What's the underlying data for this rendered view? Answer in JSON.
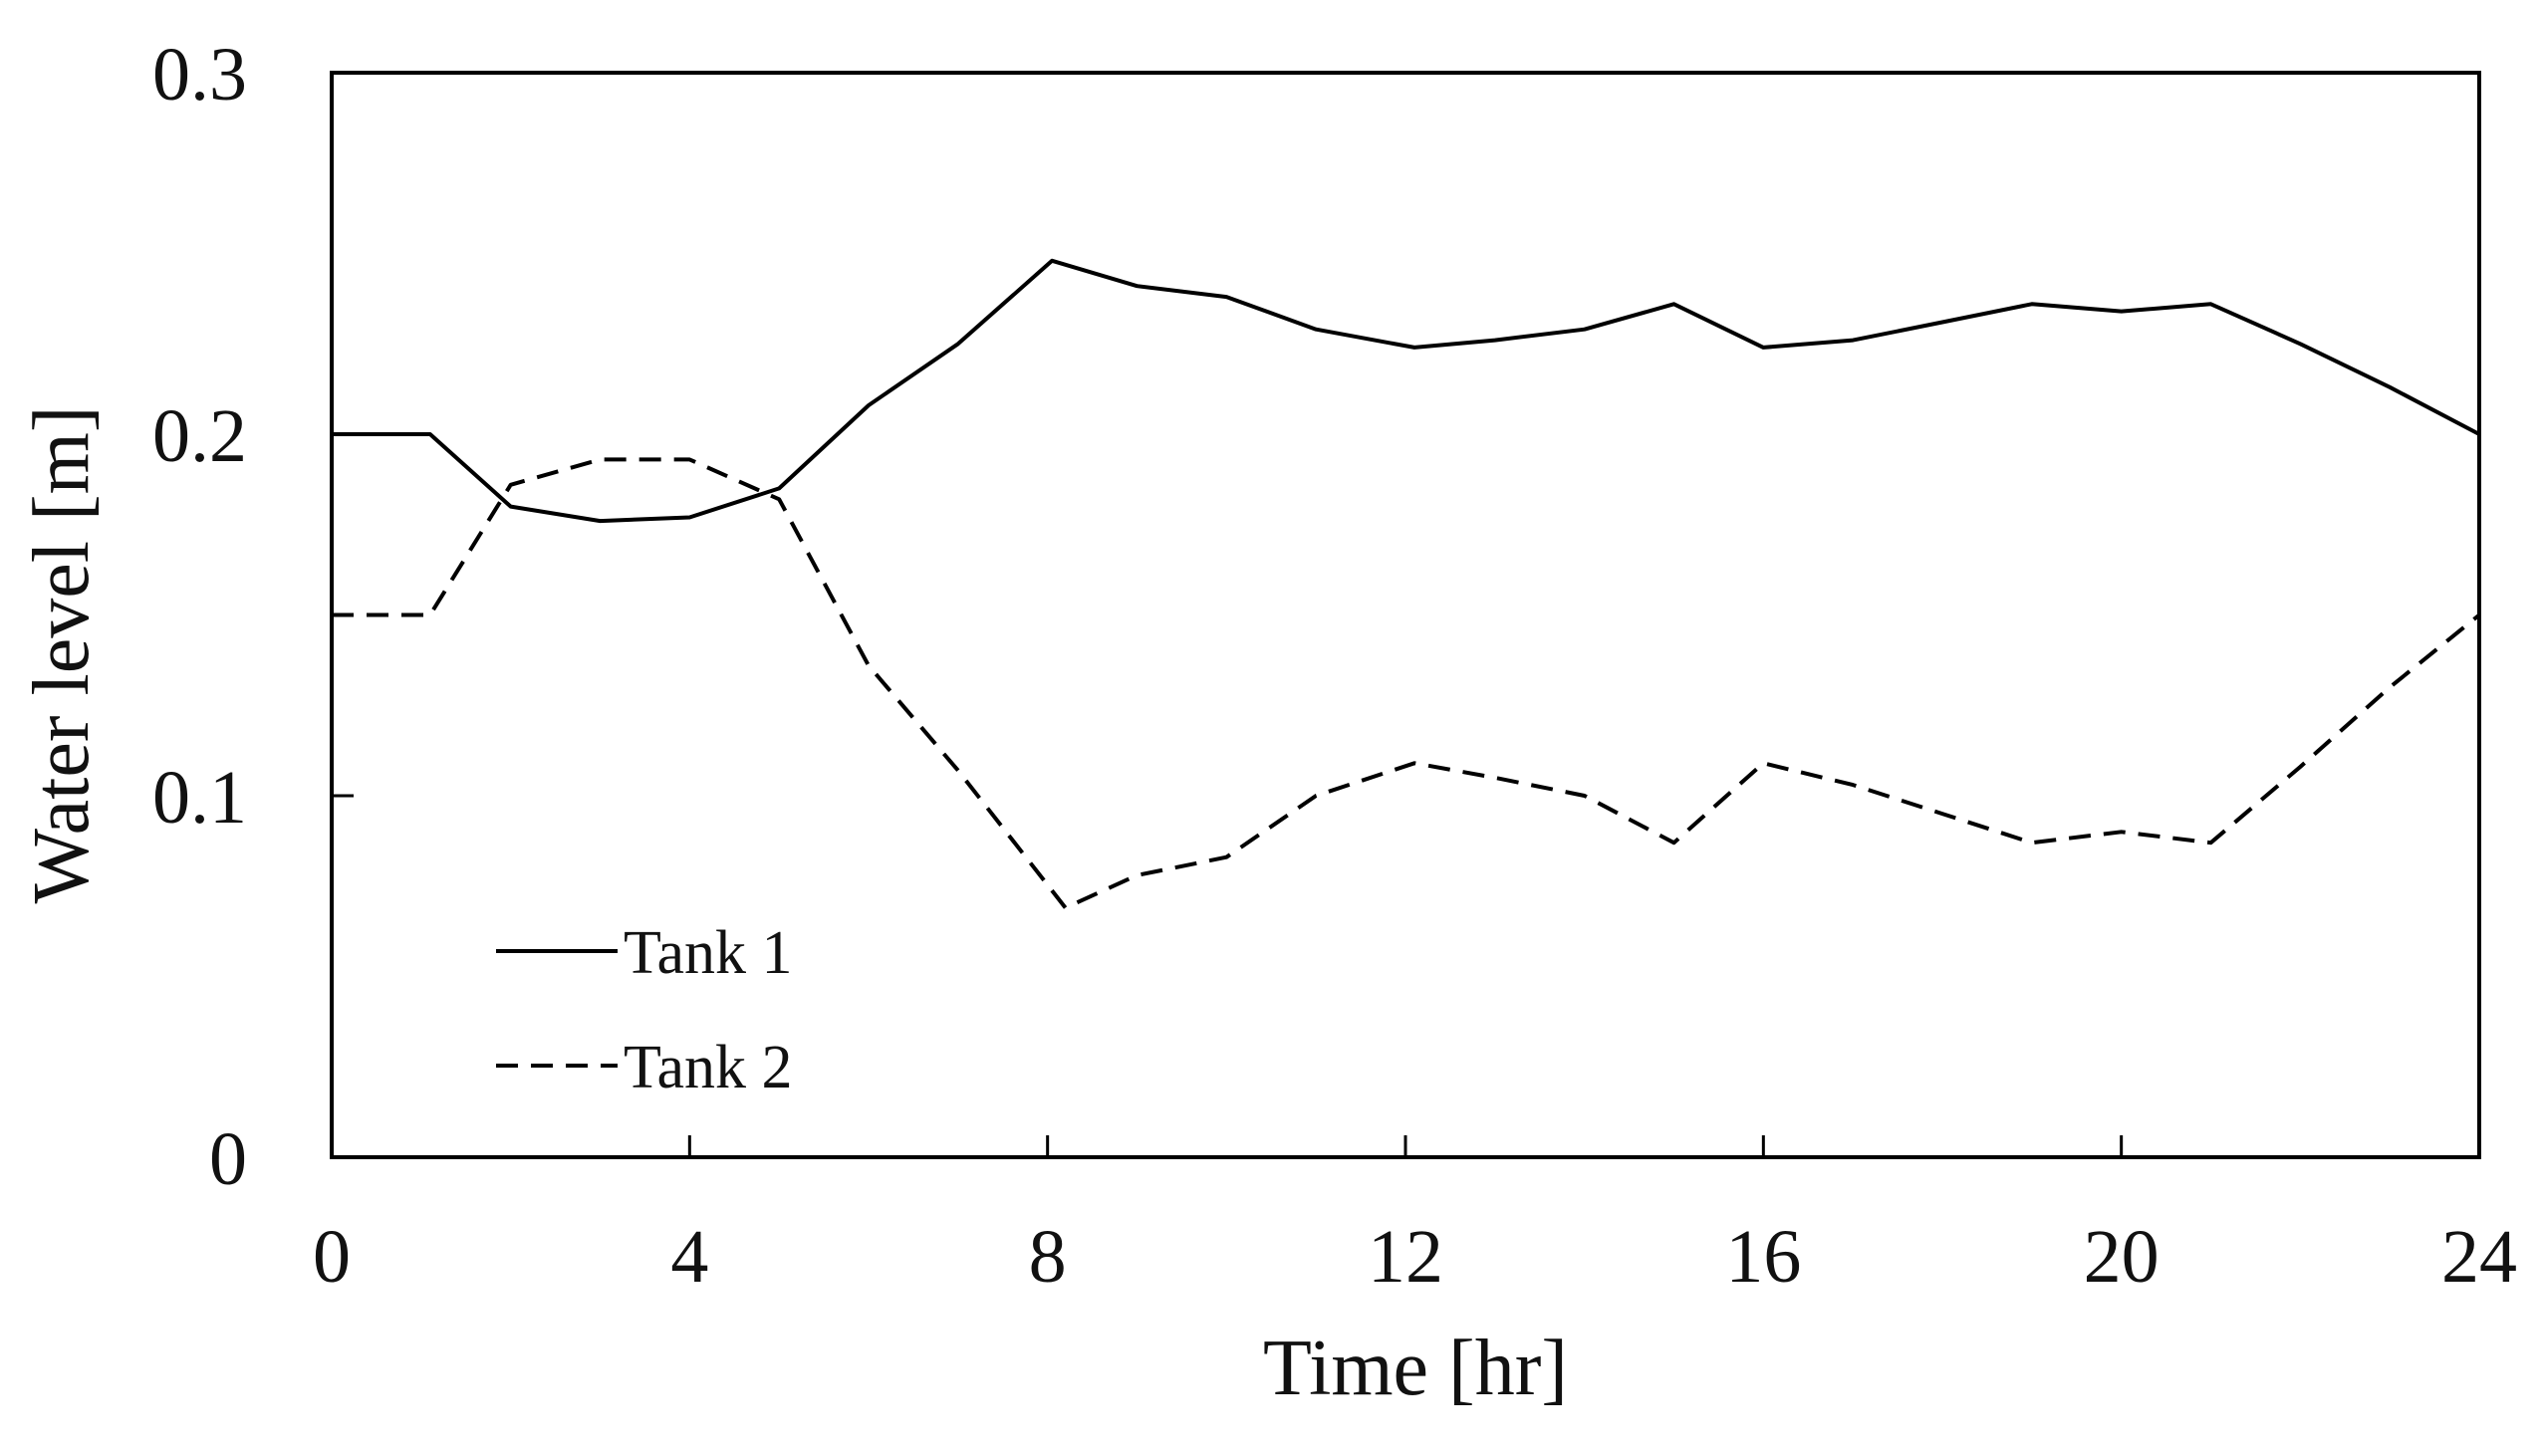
{
  "chart_data": {
    "type": "line",
    "title": "",
    "xlabel": "Time [hr]",
    "ylabel": "Water level [m]",
    "xlim": [
      0,
      24
    ],
    "ylim": [
      0,
      0.3
    ],
    "x_ticks": [
      0,
      4,
      8,
      12,
      16,
      20,
      24
    ],
    "x_tick_labels": [
      "0",
      "4",
      "8",
      "12",
      "16",
      "20",
      "24"
    ],
    "y_ticks": [
      0,
      0.1,
      0.2,
      0.3
    ],
    "y_tick_labels": [
      "0",
      "0.1",
      "0.2",
      "0.3"
    ],
    "grid": false,
    "legend_position": "bottom-left",
    "series": [
      {
        "name": "Tank 1",
        "style": "solid",
        "color": "#000000",
        "x": [
          0,
          1.1,
          2,
          3,
          4,
          5,
          6,
          7,
          8.05,
          9,
          10,
          11,
          12.1,
          13,
          14,
          15,
          16,
          17,
          18,
          19,
          20,
          21,
          22,
          23,
          24
        ],
        "y": [
          0.2,
          0.2,
          0.18,
          0.176,
          0.177,
          0.185,
          0.208,
          0.225,
          0.248,
          0.241,
          0.238,
          0.229,
          0.224,
          0.226,
          0.229,
          0.236,
          0.224,
          0.226,
          0.231,
          0.236,
          0.234,
          0.236,
          0.225,
          0.213,
          0.2
        ]
      },
      {
        "name": "Tank 2",
        "style": "dashed",
        "color": "#000000",
        "x": [
          0,
          1.1,
          2,
          3,
          4,
          5,
          6,
          7,
          8.2,
          9,
          10,
          11,
          12.1,
          13,
          14,
          15,
          16,
          17,
          18,
          19,
          20,
          21,
          22,
          23,
          24
        ],
        "y": [
          0.15,
          0.15,
          0.186,
          0.193,
          0.193,
          0.182,
          0.136,
          0.107,
          0.069,
          0.078,
          0.083,
          0.1,
          0.109,
          0.105,
          0.1,
          0.087,
          0.109,
          0.103,
          0.095,
          0.087,
          0.09,
          0.087,
          0.108,
          0.13,
          0.15
        ]
      }
    ]
  }
}
